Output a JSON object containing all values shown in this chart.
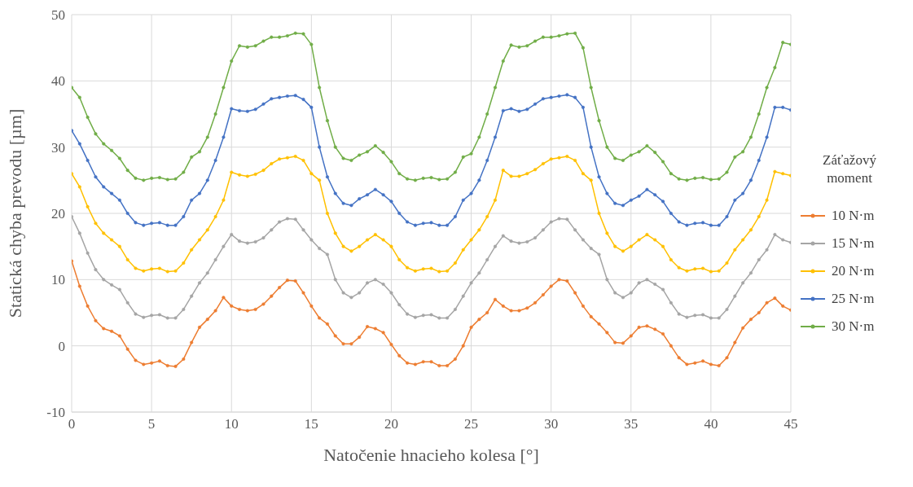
{
  "chart_data": {
    "type": "line",
    "xlabel": "Natočenie hnacieho kolesa [°]",
    "ylabel": "Statická chyba prevodu [µm]",
    "legend_title": "Záťažový moment",
    "legend": "right",
    "grid": true,
    "marker": "circle",
    "line_style": "solid",
    "xlim": [
      0,
      45
    ],
    "xticks": [
      0,
      5,
      10,
      15,
      20,
      25,
      30,
      35,
      40,
      45
    ],
    "ylim": [
      -10,
      50
    ],
    "yticks": [
      -10,
      0,
      10,
      20,
      30,
      40,
      50
    ],
    "x": [
      0,
      0.5,
      1,
      1.5,
      2,
      2.5,
      3,
      3.5,
      4,
      4.5,
      5,
      5.5,
      6,
      6.5,
      7,
      7.5,
      8,
      8.5,
      9,
      9.5,
      10,
      10.5,
      11,
      11.5,
      12,
      12.5,
      13,
      13.5,
      14,
      14.5,
      15,
      15.5,
      16,
      16.5,
      17,
      17.5,
      18,
      18.5,
      19,
      19.5,
      20,
      20.5,
      21,
      21.5,
      22,
      22.5,
      23,
      23.5,
      24,
      24.5,
      25,
      25.5,
      26,
      26.5,
      27,
      27.5,
      28,
      28.5,
      29,
      29.5,
      30,
      30.5,
      31,
      31.5,
      32,
      32.5,
      33,
      33.5,
      34,
      34.5,
      35,
      35.5,
      36,
      36.5,
      37,
      37.5,
      38,
      38.5,
      39,
      39.5,
      40,
      40.5,
      41,
      41.5,
      42,
      42.5,
      43,
      43.5,
      44,
      44.5,
      45
    ],
    "series": [
      {
        "name": "10 N·m",
        "color": "#ed7d31",
        "values": [
          12.8,
          9,
          6,
          3.8,
          2.6,
          2.2,
          1.5,
          -0.5,
          -2.2,
          -2.8,
          -2.6,
          -2.3,
          -3,
          -3.1,
          -2,
          0.5,
          2.8,
          4,
          5.3,
          7.3,
          6,
          5.5,
          5.3,
          5.5,
          6.3,
          7.5,
          8.8,
          9.9,
          9.8,
          8,
          6,
          4.2,
          3.3,
          1.5,
          0.3,
          0.3,
          1.3,
          2.9,
          2.6,
          2,
          0.2,
          -1.5,
          -2.6,
          -2.8,
          -2.4,
          -2.4,
          -3,
          -3,
          -2,
          0,
          2.8,
          4,
          5,
          7,
          6,
          5.3,
          5.3,
          5.7,
          6.5,
          7.7,
          9,
          10,
          9.8,
          8,
          6,
          4.4,
          3.3,
          2,
          0.5,
          0.4,
          1.5,
          2.8,
          3,
          2.5,
          1.8,
          0,
          -1.8,
          -2.8,
          -2.6,
          -2.3,
          -2.8,
          -3,
          -1.8,
          0.5,
          2.7,
          4,
          5,
          6.5,
          7.2,
          6,
          5.4
        ]
      },
      {
        "name": "15 N·m",
        "color": "#a5a5a5",
        "values": [
          19.5,
          17,
          14,
          11.5,
          10,
          9.2,
          8.5,
          6.5,
          4.8,
          4.3,
          4.6,
          4.7,
          4.2,
          4.2,
          5.5,
          7.5,
          9.5,
          11,
          13,
          15,
          16.8,
          15.8,
          15.5,
          15.7,
          16.3,
          17.5,
          18.7,
          19.2,
          19.1,
          17.5,
          16,
          14.7,
          13.8,
          10,
          8,
          7.3,
          8,
          9.5,
          10,
          9.3,
          8,
          6.2,
          4.8,
          4.3,
          4.6,
          4.7,
          4.2,
          4.2,
          5.5,
          7.5,
          9.5,
          11,
          13,
          15,
          16.6,
          15.8,
          15.5,
          15.7,
          16.3,
          17.5,
          18.7,
          19.2,
          19.1,
          17.5,
          16,
          14.7,
          13.8,
          10,
          8,
          7.3,
          8,
          9.5,
          10,
          9.3,
          8.5,
          6.5,
          4.8,
          4.3,
          4.6,
          4.7,
          4.2,
          4.2,
          5.5,
          7.5,
          9.5,
          11,
          13,
          14.5,
          16.8,
          16,
          15.6
        ]
      },
      {
        "name": "20 N·m",
        "color": "#ffc000",
        "values": [
          26,
          24,
          21,
          18.5,
          17,
          16,
          15,
          13,
          11.7,
          11.3,
          11.6,
          11.7,
          11.2,
          11.3,
          12.5,
          14.5,
          16,
          17.5,
          19.5,
          22,
          26.2,
          25.8,
          25.6,
          25.9,
          26.5,
          27.5,
          28.2,
          28.4,
          28.6,
          28,
          26,
          25,
          20,
          17,
          15,
          14.3,
          15,
          16,
          16.8,
          16,
          15,
          13,
          11.8,
          11.3,
          11.6,
          11.7,
          11.2,
          11.3,
          12.5,
          14.5,
          16,
          17.5,
          19.5,
          22,
          26.5,
          25.6,
          25.6,
          26,
          26.6,
          27.5,
          28.2,
          28.4,
          28.6,
          28,
          26,
          25,
          20,
          17,
          15,
          14.3,
          15,
          16,
          16.8,
          16,
          15,
          13,
          11.8,
          11.3,
          11.6,
          11.7,
          11.2,
          11.3,
          12.5,
          14.5,
          16,
          17.5,
          19.5,
          22,
          26.3,
          26,
          25.7
        ]
      },
      {
        "name": "25 N·m",
        "color": "#4472c4",
        "values": [
          32.5,
          30.5,
          28,
          25.5,
          24,
          23,
          22,
          20,
          18.6,
          18.2,
          18.5,
          18.6,
          18.2,
          18.2,
          19.5,
          22,
          23,
          25,
          28,
          31.5,
          35.8,
          35.5,
          35.4,
          35.7,
          36.5,
          37.3,
          37.5,
          37.7,
          37.8,
          37.2,
          36,
          30,
          25.5,
          23,
          21.5,
          21.2,
          22.2,
          22.8,
          23.6,
          22.8,
          21.8,
          20,
          18.7,
          18.2,
          18.5,
          18.6,
          18.2,
          18.2,
          19.5,
          22,
          23,
          25,
          28,
          31.5,
          35.5,
          35.8,
          35.4,
          35.7,
          36.5,
          37.3,
          37.5,
          37.7,
          37.9,
          37.5,
          36,
          30,
          25.5,
          23,
          21.5,
          21.2,
          22,
          22.6,
          23.6,
          22.8,
          21.8,
          20,
          18.7,
          18.2,
          18.5,
          18.6,
          18.2,
          18.2,
          19.5,
          22,
          23,
          25,
          28,
          31.5,
          36,
          36,
          35.6
        ]
      },
      {
        "name": "30 N·m",
        "color": "#70ad47",
        "values": [
          39,
          37.5,
          34.5,
          32,
          30.5,
          29.5,
          28.3,
          26.5,
          25.3,
          25,
          25.3,
          25.4,
          25.1,
          25.2,
          26.2,
          28.5,
          29.3,
          31.5,
          35,
          39,
          43,
          45.3,
          45.1,
          45.3,
          46,
          46.6,
          46.6,
          46.8,
          47.2,
          47.1,
          45.5,
          39,
          34,
          30,
          28.3,
          28,
          28.8,
          29.3,
          30.2,
          29.2,
          27.8,
          26,
          25.2,
          25,
          25.3,
          25.4,
          25.1,
          25.2,
          26.2,
          28.5,
          29,
          31.5,
          35,
          39,
          43,
          45.4,
          45.1,
          45.3,
          46,
          46.6,
          46.6,
          46.8,
          47.1,
          47.2,
          45,
          39,
          34,
          30,
          28.3,
          28,
          28.8,
          29.3,
          30.2,
          29.2,
          27.8,
          26,
          25.2,
          25,
          25.3,
          25.4,
          25.1,
          25.2,
          26.2,
          28.5,
          29.3,
          31.5,
          35,
          39,
          42,
          45.8,
          45.5
        ]
      }
    ]
  }
}
